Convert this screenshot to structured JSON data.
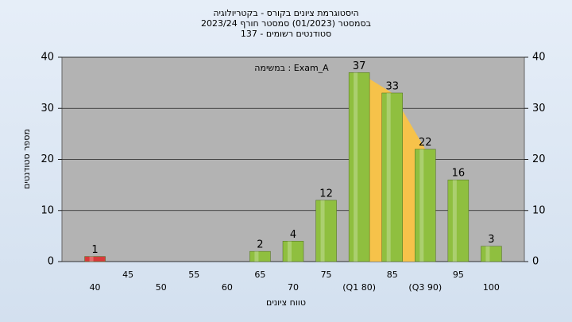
{
  "chart_data": {
    "type": "bar",
    "title": "היסטוגרמת ציונים בקורס - בקטריולוגיה",
    "subtitle": "בסמסטר  (01/2023)  סמסטר חורף 2023/24",
    "subtitle2": "סטודנטים רשומים - 137",
    "annotation": "במשימה : Exam_A",
    "x_label": "טווח ציונים",
    "y_label": "מספר סטודנטים",
    "categories": [
      "40",
      "45",
      "50",
      "55",
      "60",
      "65",
      "70",
      "75",
      "(Q1 80)",
      "85",
      "(Q3 90)",
      "95",
      "100"
    ],
    "values": [
      1,
      0,
      0,
      0,
      0,
      2,
      4,
      12,
      37,
      33,
      22,
      16,
      3
    ],
    "colors": [
      "#d93a3a",
      "#8fbf3f",
      "#8fbf3f",
      "#8fbf3f",
      "#8fbf3f",
      "#8fbf3f",
      "#8fbf3f",
      "#8fbf3f",
      "#8fbf3f",
      "#8fbf3f",
      "#8fbf3f",
      "#8fbf3f",
      "#8fbf3f"
    ],
    "quartile_color": "#f6c24a",
    "ylim": [
      0,
      40
    ],
    "yticks": [
      0,
      10,
      20,
      30,
      40
    ],
    "grid": true
  }
}
